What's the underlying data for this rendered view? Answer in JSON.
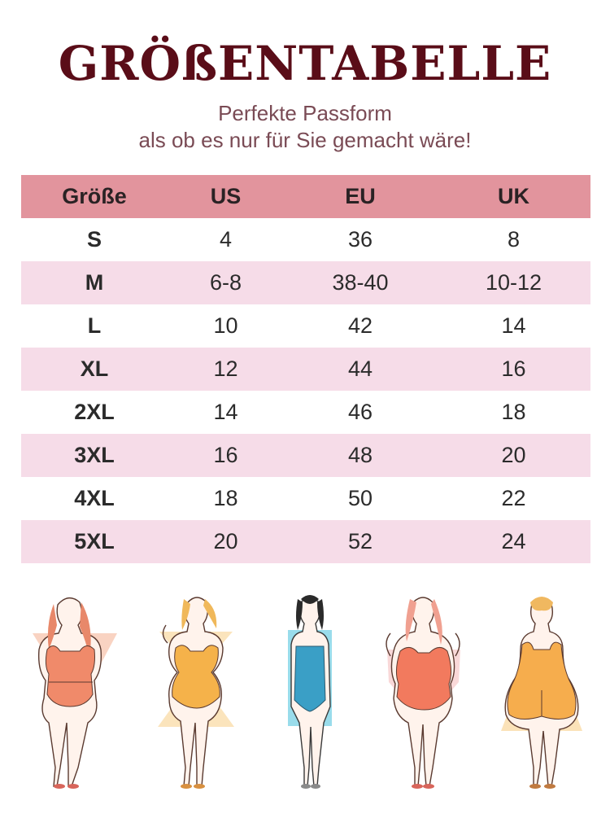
{
  "header": {
    "title": "GRÖßENTABELLE",
    "subtitle_line1": "Perfekte Passform",
    "subtitle_line2": "als ob es nur für Sie gemacht wäre!"
  },
  "table": {
    "columns": [
      "Größe",
      "US",
      "EU",
      "UK"
    ],
    "rows": [
      [
        "S",
        "4",
        "36",
        "8"
      ],
      [
        "M",
        "6-8",
        "38-40",
        "10-12"
      ],
      [
        "L",
        "10",
        "42",
        "14"
      ],
      [
        "XL",
        "12",
        "44",
        "16"
      ],
      [
        "2XL",
        "14",
        "46",
        "18"
      ],
      [
        "3XL",
        "16",
        "48",
        "20"
      ],
      [
        "4XL",
        "18",
        "50",
        "22"
      ],
      [
        "5XL",
        "20",
        "52",
        "24"
      ]
    ]
  },
  "colors": {
    "title": "#5a0d18",
    "header_row": "#e2949d",
    "alt_row": "#f6dce8"
  },
  "body_shapes": [
    {
      "icon": "body-shape-triangle-icon",
      "swimsuit": "#f08a6a",
      "shape": "#f6c0a8"
    },
    {
      "icon": "body-shape-hourglass-icon",
      "swimsuit": "#f5b24a",
      "shape": "#f9d9a0"
    },
    {
      "icon": "body-shape-rectangle-icon",
      "swimsuit": "#3a9fc6",
      "shape": "#7fd3e6"
    },
    {
      "icon": "body-shape-apple-icon",
      "swimsuit": "#f27a5e",
      "shape": "#f6c7c7"
    },
    {
      "icon": "body-shape-pear-icon",
      "swimsuit": "#f6ad4d",
      "shape": "#f9d59a"
    }
  ]
}
